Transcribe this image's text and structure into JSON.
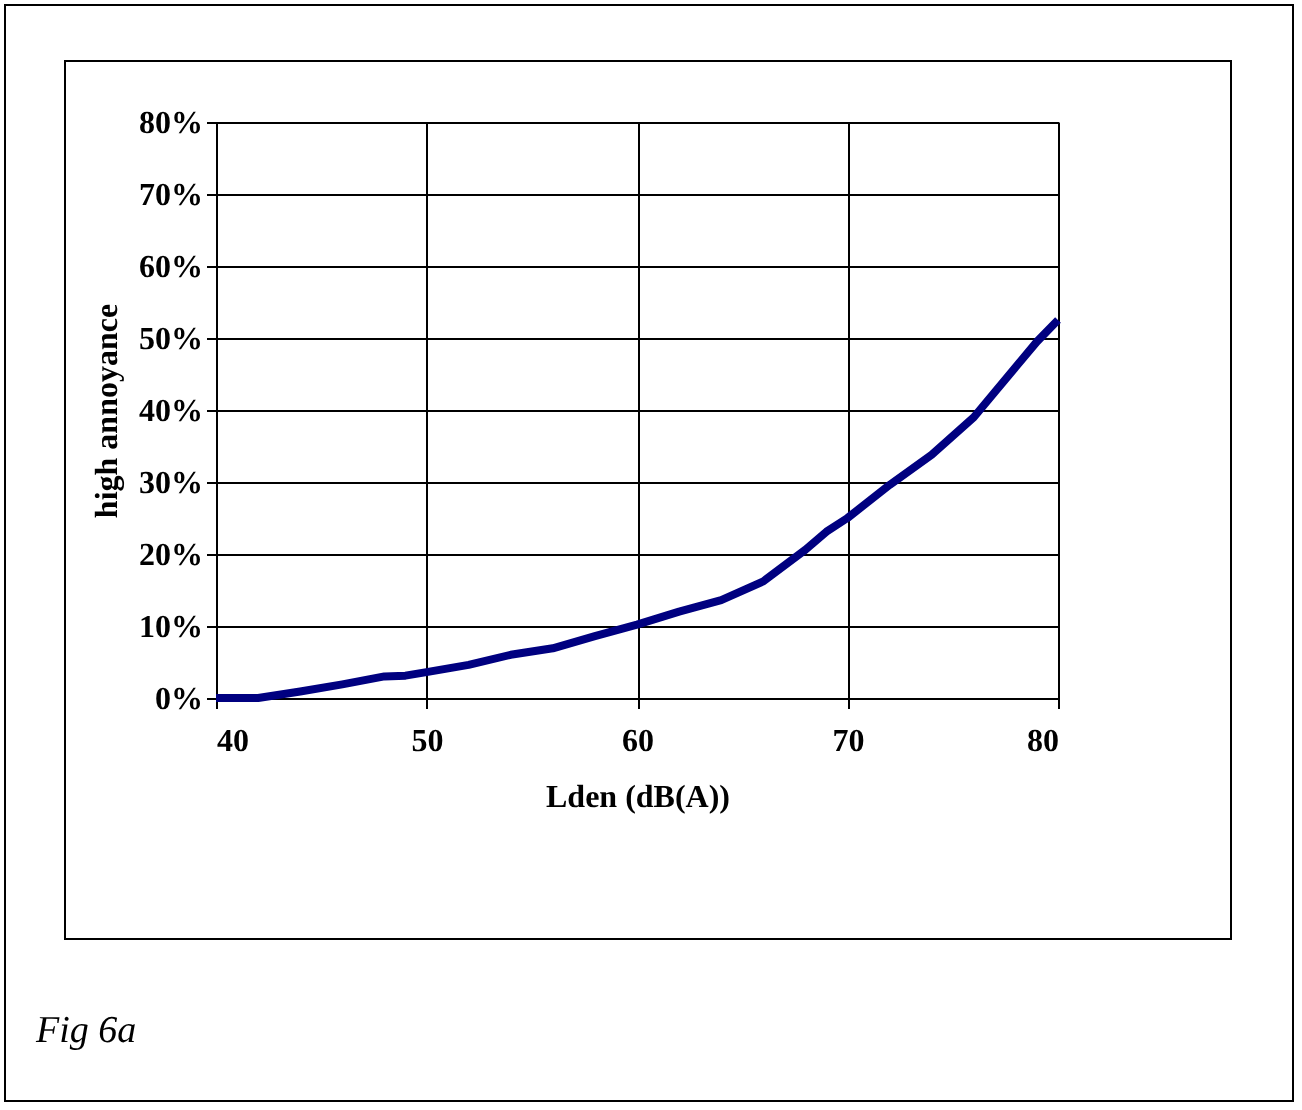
{
  "chart_data": {
    "type": "line",
    "xlabel": "Lden (dB(A))",
    "ylabel": "high annoyance",
    "annotations": [
      "Fig 6a"
    ],
    "x": [
      40,
      42,
      44,
      46,
      48,
      49,
      50,
      52,
      54,
      56,
      58,
      60,
      62,
      64,
      66,
      68,
      69,
      70,
      72,
      74,
      76,
      77,
      78,
      79,
      80
    ],
    "series": [
      {
        "color": "#000080",
        "values": [
          0,
          0,
          0.9,
          1.9,
          3.0,
          3.1,
          3.6,
          4.6,
          6.0,
          6.9,
          8.6,
          10.2,
          12.0,
          13.6,
          16.2,
          20.6,
          23.1,
          25.0,
          29.6,
          33.8,
          39.0,
          42.5,
          46.0,
          49.5,
          52.5
        ]
      }
    ],
    "xlim": [
      40,
      80
    ],
    "xticks": [
      40,
      50,
      60,
      70,
      80
    ],
    "ylim": [
      0,
      80
    ],
    "yticks": [
      {
        "value": 0,
        "label": "0%"
      },
      {
        "value": 10,
        "label": "10%"
      },
      {
        "value": 20,
        "label": "20%"
      },
      {
        "value": 30,
        "label": "30%"
      },
      {
        "value": 40,
        "label": "40%"
      },
      {
        "value": 50,
        "label": "50%"
      },
      {
        "value": 60,
        "label": "60%"
      },
      {
        "value": 70,
        "label": "70%"
      },
      {
        "value": 80,
        "label": "80%"
      }
    ],
    "grid": true,
    "marker": "none",
    "line_style": "solid",
    "legend": false
  }
}
